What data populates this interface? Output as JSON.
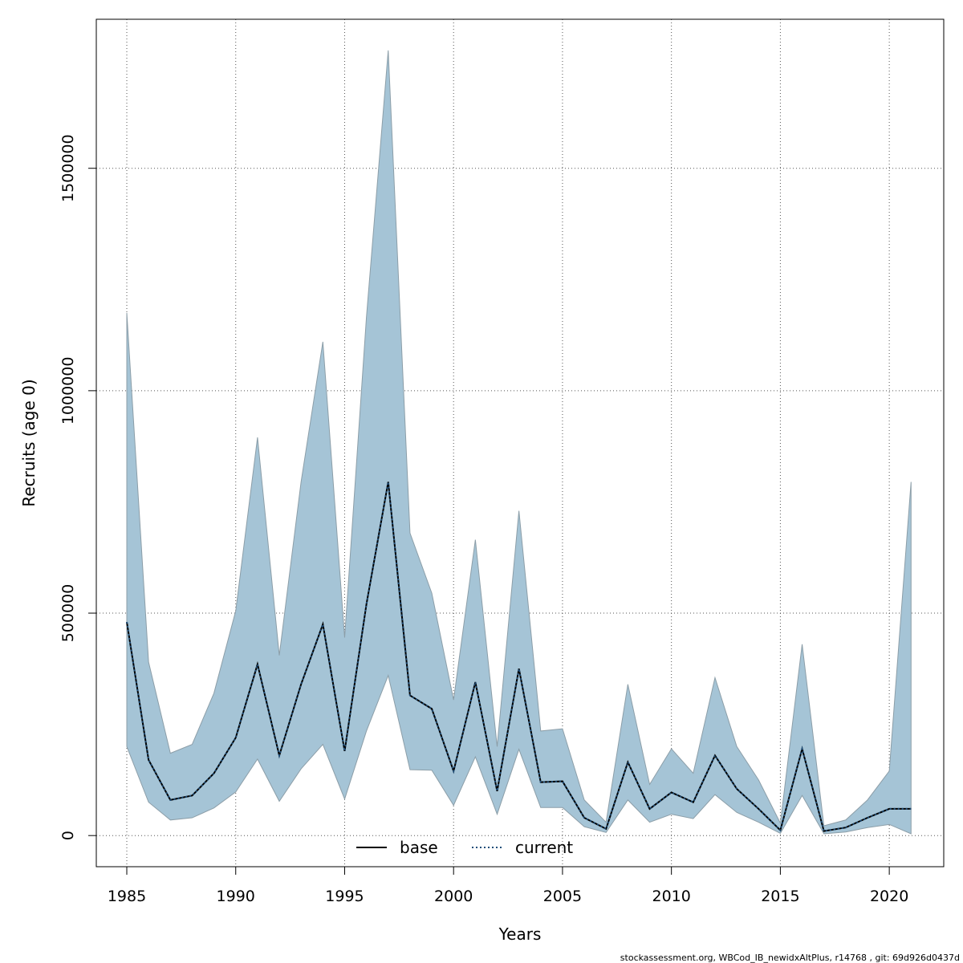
{
  "chart_data": {
    "type": "area",
    "xlabel": "Years",
    "ylabel": "Recruits (age 0)",
    "xlim": [
      1983.6,
      2022.5
    ],
    "ylim": [
      -70000,
      1835000
    ],
    "x_ticks": [
      1985,
      1990,
      1995,
      2000,
      2005,
      2010,
      2015,
      2020
    ],
    "y_ticks": [
      0,
      500000,
      1000000,
      1500000
    ],
    "y_tick_labels": [
      "0",
      "500000",
      "1000000",
      "1500000"
    ],
    "grid": true,
    "legend_position": "bottom-center",
    "legend": [
      {
        "name": "base",
        "style": "solid",
        "color": "#000000"
      },
      {
        "name": "current",
        "style": "dotted",
        "color": "#1f4e79"
      }
    ],
    "band_color": "#a5c4d6",
    "x": [
      1985,
      1986,
      1987,
      1988,
      1989,
      1990,
      1991,
      1992,
      1993,
      1994,
      1995,
      1996,
      1997,
      1998,
      1999,
      2000,
      2001,
      2002,
      2003,
      2004,
      2005,
      2006,
      2007,
      2008,
      2009,
      2010,
      2011,
      2012,
      2013,
      2014,
      2015,
      2016,
      2017,
      2018,
      2019,
      2020,
      2021
    ],
    "series": [
      {
        "name": "base",
        "values": [
          480000,
          170000,
          80000,
          90000,
          140000,
          220000,
          385000,
          180000,
          340000,
          475000,
          190000,
          520000,
          795000,
          315000,
          285000,
          145000,
          345000,
          100000,
          375000,
          120000,
          122000,
          40000,
          15000,
          165000,
          60000,
          97000,
          75000,
          180000,
          105000,
          60000,
          12000,
          195000,
          10000,
          18000,
          40000,
          60000,
          60000
        ]
      },
      {
        "name": "current",
        "values": [
          480000,
          170000,
          80000,
          90000,
          140000,
          220000,
          385000,
          180000,
          340000,
          475000,
          190000,
          520000,
          795000,
          315000,
          285000,
          145000,
          345000,
          100000,
          375000,
          120000,
          122000,
          40000,
          15000,
          165000,
          60000,
          97000,
          75000,
          180000,
          105000,
          60000,
          12000,
          195000,
          10000,
          18000,
          40000,
          60000,
          60000
        ]
      }
    ],
    "band_upper": [
      1175000,
      390000,
      185000,
      205000,
      320000,
      505000,
      895000,
      405000,
      795000,
      1110000,
      445000,
      1165000,
      1765000,
      680000,
      545000,
      305000,
      665000,
      200000,
      730000,
      235000,
      240000,
      80000,
      30000,
      340000,
      115000,
      195000,
      140000,
      355000,
      200000,
      125000,
      28000,
      430000,
      22000,
      35000,
      80000,
      145000,
      795000
    ],
    "band_lower": [
      200000,
      75000,
      35000,
      40000,
      62000,
      98000,
      172000,
      77000,
      150000,
      205000,
      82000,
      235000,
      360000,
      148000,
      147000,
      68000,
      177000,
      48000,
      194000,
      63000,
      63000,
      20000,
      7000,
      80000,
      30000,
      48000,
      38000,
      92000,
      52000,
      30000,
      5000,
      90000,
      4000,
      8000,
      18000,
      25000,
      4000
    ]
  },
  "footer": {
    "text": "stockassessment.org, WBCod_IB_newidxAltPlus, r14768 , git: 69d926d0437d"
  }
}
